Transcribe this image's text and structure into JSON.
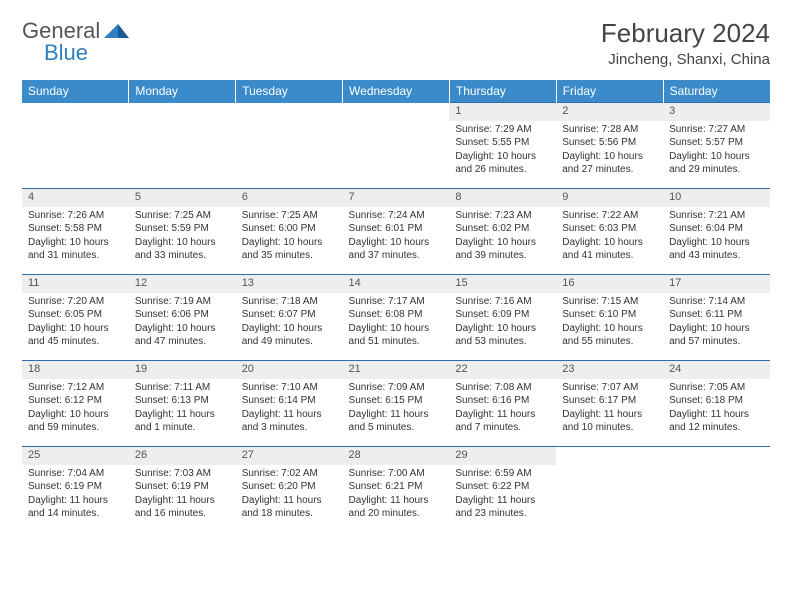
{
  "logo": {
    "text1": "General",
    "text2": "Blue"
  },
  "title": "February 2024",
  "location": "Jincheng, Shanxi, China",
  "colors": {
    "header_bg": "#3b8bca",
    "header_text": "#ffffff",
    "daynum_bg": "#eeeeee",
    "daynum_text": "#555555",
    "border": "#2f6fa8",
    "body_text": "#333333",
    "logo_blue": "#2f7fc2",
    "logo_gray": "#555555"
  },
  "day_headers": [
    "Sunday",
    "Monday",
    "Tuesday",
    "Wednesday",
    "Thursday",
    "Friday",
    "Saturday"
  ],
  "weeks": [
    [
      null,
      null,
      null,
      null,
      {
        "n": "1",
        "sr": "7:29 AM",
        "ss": "5:55 PM",
        "dl": "10 hours and 26 minutes."
      },
      {
        "n": "2",
        "sr": "7:28 AM",
        "ss": "5:56 PM",
        "dl": "10 hours and 27 minutes."
      },
      {
        "n": "3",
        "sr": "7:27 AM",
        "ss": "5:57 PM",
        "dl": "10 hours and 29 minutes."
      }
    ],
    [
      {
        "n": "4",
        "sr": "7:26 AM",
        "ss": "5:58 PM",
        "dl": "10 hours and 31 minutes."
      },
      {
        "n": "5",
        "sr": "7:25 AM",
        "ss": "5:59 PM",
        "dl": "10 hours and 33 minutes."
      },
      {
        "n": "6",
        "sr": "7:25 AM",
        "ss": "6:00 PM",
        "dl": "10 hours and 35 minutes."
      },
      {
        "n": "7",
        "sr": "7:24 AM",
        "ss": "6:01 PM",
        "dl": "10 hours and 37 minutes."
      },
      {
        "n": "8",
        "sr": "7:23 AM",
        "ss": "6:02 PM",
        "dl": "10 hours and 39 minutes."
      },
      {
        "n": "9",
        "sr": "7:22 AM",
        "ss": "6:03 PM",
        "dl": "10 hours and 41 minutes."
      },
      {
        "n": "10",
        "sr": "7:21 AM",
        "ss": "6:04 PM",
        "dl": "10 hours and 43 minutes."
      }
    ],
    [
      {
        "n": "11",
        "sr": "7:20 AM",
        "ss": "6:05 PM",
        "dl": "10 hours and 45 minutes."
      },
      {
        "n": "12",
        "sr": "7:19 AM",
        "ss": "6:06 PM",
        "dl": "10 hours and 47 minutes."
      },
      {
        "n": "13",
        "sr": "7:18 AM",
        "ss": "6:07 PM",
        "dl": "10 hours and 49 minutes."
      },
      {
        "n": "14",
        "sr": "7:17 AM",
        "ss": "6:08 PM",
        "dl": "10 hours and 51 minutes."
      },
      {
        "n": "15",
        "sr": "7:16 AM",
        "ss": "6:09 PM",
        "dl": "10 hours and 53 minutes."
      },
      {
        "n": "16",
        "sr": "7:15 AM",
        "ss": "6:10 PM",
        "dl": "10 hours and 55 minutes."
      },
      {
        "n": "17",
        "sr": "7:14 AM",
        "ss": "6:11 PM",
        "dl": "10 hours and 57 minutes."
      }
    ],
    [
      {
        "n": "18",
        "sr": "7:12 AM",
        "ss": "6:12 PM",
        "dl": "10 hours and 59 minutes."
      },
      {
        "n": "19",
        "sr": "7:11 AM",
        "ss": "6:13 PM",
        "dl": "11 hours and 1 minute."
      },
      {
        "n": "20",
        "sr": "7:10 AM",
        "ss": "6:14 PM",
        "dl": "11 hours and 3 minutes."
      },
      {
        "n": "21",
        "sr": "7:09 AM",
        "ss": "6:15 PM",
        "dl": "11 hours and 5 minutes."
      },
      {
        "n": "22",
        "sr": "7:08 AM",
        "ss": "6:16 PM",
        "dl": "11 hours and 7 minutes."
      },
      {
        "n": "23",
        "sr": "7:07 AM",
        "ss": "6:17 PM",
        "dl": "11 hours and 10 minutes."
      },
      {
        "n": "24",
        "sr": "7:05 AM",
        "ss": "6:18 PM",
        "dl": "11 hours and 12 minutes."
      }
    ],
    [
      {
        "n": "25",
        "sr": "7:04 AM",
        "ss": "6:19 PM",
        "dl": "11 hours and 14 minutes."
      },
      {
        "n": "26",
        "sr": "7:03 AM",
        "ss": "6:19 PM",
        "dl": "11 hours and 16 minutes."
      },
      {
        "n": "27",
        "sr": "7:02 AM",
        "ss": "6:20 PM",
        "dl": "11 hours and 18 minutes."
      },
      {
        "n": "28",
        "sr": "7:00 AM",
        "ss": "6:21 PM",
        "dl": "11 hours and 20 minutes."
      },
      {
        "n": "29",
        "sr": "6:59 AM",
        "ss": "6:22 PM",
        "dl": "11 hours and 23 minutes."
      },
      null,
      null
    ]
  ],
  "labels": {
    "sunrise": "Sunrise:",
    "sunset": "Sunset:",
    "daylight": "Daylight:"
  }
}
